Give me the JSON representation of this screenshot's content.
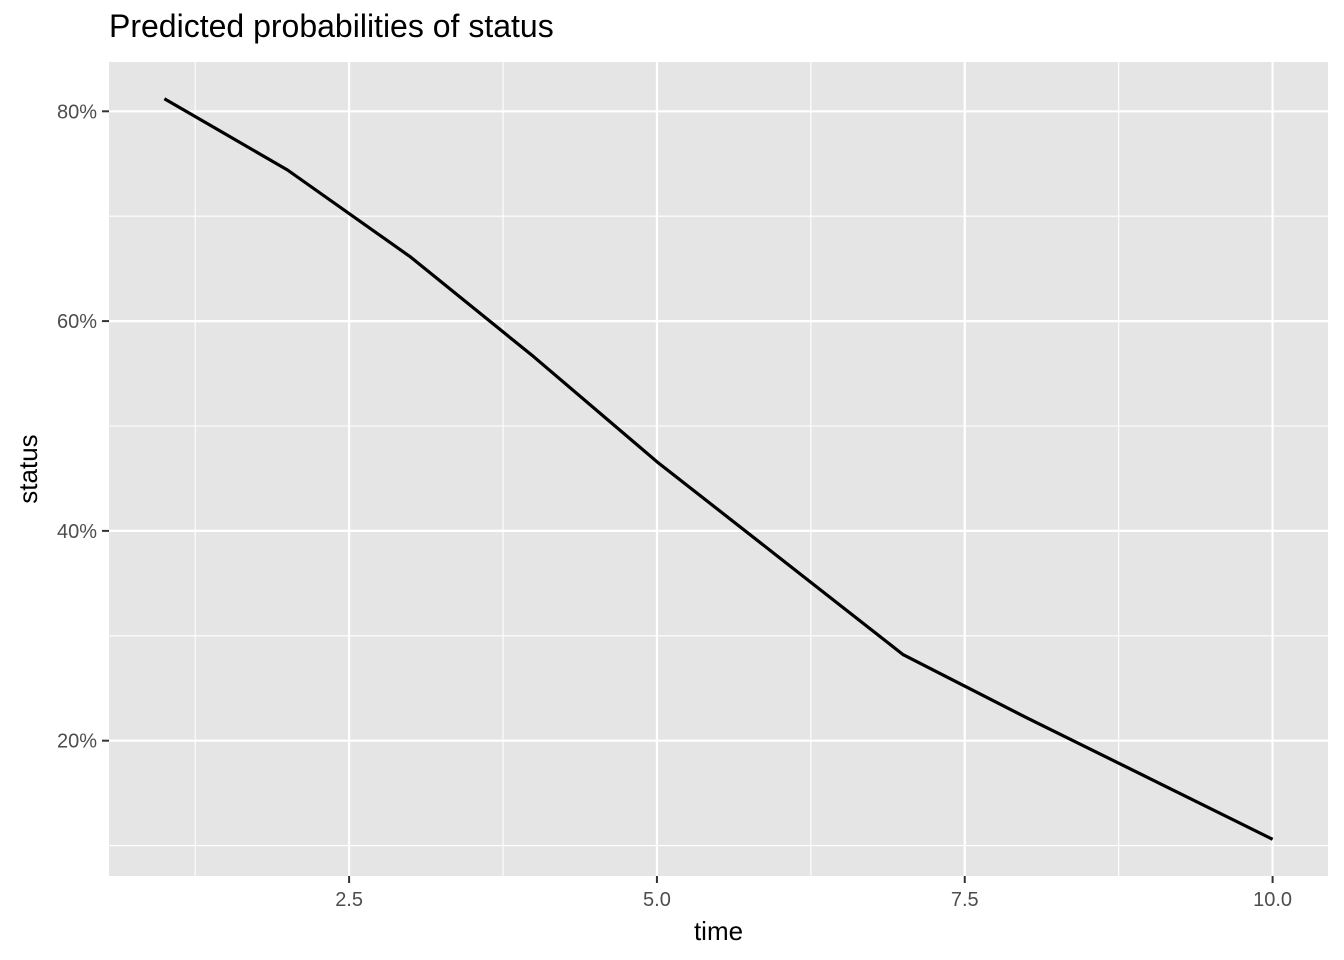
{
  "chart_data": {
    "type": "line",
    "title": "Predicted probabilities of status",
    "xlabel": "time",
    "ylabel": "status",
    "x": [
      1,
      2,
      3,
      4,
      5,
      6,
      7,
      8,
      9,
      10
    ],
    "series": [
      {
        "values": [
          0.812,
          0.744,
          0.661,
          0.566,
          0.466,
          0.374,
          0.282,
          0.222,
          0.164,
          0.106
        ]
      }
    ],
    "xlim": [
      0.55,
      10.45
    ],
    "ylim": [
      0.071,
      0.847
    ],
    "x_ticks": [
      2.5,
      5.0,
      7.5,
      10.0
    ],
    "x_tick_labels": [
      "2.5",
      "5.0",
      "7.5",
      "10.0"
    ],
    "y_ticks": [
      0.2,
      0.4,
      0.6,
      0.8
    ],
    "y_tick_labels": [
      "20%",
      "40%",
      "60%",
      "80%"
    ],
    "grid": true,
    "panel_background": "#e5e5e5",
    "grid_color": "#ffffff",
    "line_color": "#000000"
  }
}
